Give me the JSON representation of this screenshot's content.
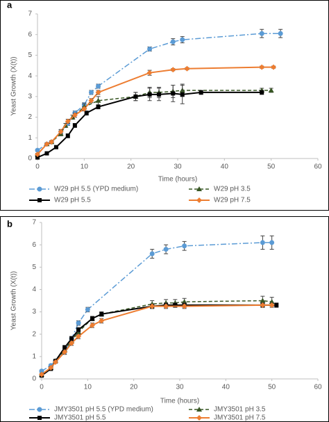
{
  "chart_data": [
    {
      "type": "line",
      "label": "a",
      "x_label": "Time (hours)",
      "y_label": "Yeast Growth (X(t))",
      "xlim": [
        0,
        60
      ],
      "xticks": [
        0,
        10,
        20,
        30,
        40,
        50,
        60
      ],
      "ylim": [
        0,
        7
      ],
      "yticks": [
        0,
        1,
        2,
        3,
        4,
        5,
        6,
        7
      ],
      "series": [
        {
          "name": "W29 pH 5.5 (YPD medium)",
          "color": "#5b9bd5",
          "line_style": "dashdot",
          "marker": "circle",
          "x": [
            0,
            2,
            3,
            5,
            6.5,
            8,
            10,
            11.5,
            13,
            24,
            29,
            31,
            48,
            52
          ],
          "values": [
            0.4,
            0.7,
            0.8,
            1.3,
            1.7,
            2.2,
            2.6,
            3.2,
            3.5,
            5.3,
            5.65,
            5.75,
            6.05,
            6.05
          ],
          "errors": [
            0.05,
            0.05,
            0.05,
            0.1,
            0.1,
            0.1,
            0.1,
            0.1,
            0.1,
            0.1,
            0.15,
            0.15,
            0.2,
            0.2
          ]
        },
        {
          "name": "W29 pH 3.5",
          "color": "#375623",
          "line_style": "dashed",
          "marker": "triangle",
          "x": [
            0,
            2,
            3,
            5,
            6,
            7.5,
            10,
            13,
            21,
            24,
            26,
            29,
            31,
            48,
            50
          ],
          "values": [
            0.2,
            0.7,
            0.8,
            1.2,
            1.6,
            2.0,
            2.5,
            2.8,
            3.0,
            3.2,
            3.2,
            3.25,
            3.3,
            3.3,
            3.3
          ],
          "errors": [
            0.05,
            0.05,
            0.05,
            0.1,
            0.1,
            0.1,
            0.15,
            0.2,
            0.2,
            0.25,
            0.25,
            0.3,
            0.3,
            0.1,
            0.1
          ]
        },
        {
          "name": "W29 pH 5.5",
          "color": "#000000",
          "line_style": "solid",
          "marker": "square",
          "x": [
            0,
            2,
            4,
            6.5,
            8,
            10.5,
            13,
            21,
            24,
            26,
            29,
            31,
            35,
            48
          ],
          "values": [
            0.05,
            0.25,
            0.55,
            1.1,
            1.6,
            2.2,
            2.5,
            3.0,
            3.1,
            3.1,
            3.15,
            3.1,
            3.2,
            3.2
          ],
          "errors": [
            0.05,
            0.05,
            0.05,
            0.1,
            0.1,
            0.1,
            0.1,
            0.2,
            0.3,
            0.3,
            0.4,
            0.45,
            0.1,
            0.1
          ]
        },
        {
          "name": "W29 pH 7.5",
          "color": "#ed7d31",
          "line_style": "solid",
          "marker": "diamond",
          "x": [
            0,
            2,
            3,
            5,
            6.5,
            8,
            10,
            11.5,
            13,
            24,
            29,
            32,
            48,
            50.5
          ],
          "values": [
            0.2,
            0.7,
            0.8,
            1.3,
            1.8,
            2.1,
            2.4,
            2.8,
            3.2,
            4.15,
            4.3,
            4.35,
            4.42,
            4.42
          ],
          "errors": [
            0.05,
            0.05,
            0.05,
            0.1,
            0.1,
            0.1,
            0.1,
            0.1,
            0.1,
            0.12,
            0.05,
            0.05,
            0.05,
            0.05
          ]
        }
      ]
    },
    {
      "type": "line",
      "label": "b",
      "x_label": "Time (hours)",
      "y_label": "Yeast Growth (X(t))",
      "xlim": [
        0,
        60
      ],
      "xticks": [
        0,
        10,
        20,
        30,
        40,
        50,
        60
      ],
      "ylim": [
        0,
        7
      ],
      "yticks": [
        0,
        1,
        2,
        3,
        4,
        5,
        6,
        7
      ],
      "series": [
        {
          "name": "JMY3501 pH 5.5 (YPD medium)",
          "color": "#5b9bd5",
          "line_style": "dashdot",
          "marker": "circle",
          "x": [
            0,
            2,
            3,
            5,
            6.5,
            8,
            10,
            24,
            27,
            31,
            48,
            50
          ],
          "values": [
            0.35,
            0.6,
            0.8,
            1.2,
            1.8,
            2.5,
            3.1,
            5.6,
            5.8,
            5.95,
            6.1,
            6.1
          ],
          "errors": [
            0.05,
            0.05,
            0.05,
            0.1,
            0.1,
            0.1,
            0.1,
            0.2,
            0.2,
            0.2,
            0.3,
            0.3
          ]
        },
        {
          "name": "JMY3501 pH 3.5",
          "color": "#375623",
          "line_style": "dashed",
          "marker": "triangle",
          "x": [
            0,
            2,
            3,
            5,
            6.5,
            8,
            11,
            13,
            24,
            27,
            29,
            31,
            48,
            50
          ],
          "values": [
            0.2,
            0.5,
            0.8,
            1.3,
            1.7,
            2.1,
            2.7,
            2.9,
            3.35,
            3.4,
            3.4,
            3.45,
            3.5,
            3.45
          ],
          "errors": [
            0.05,
            0.05,
            0.05,
            0.1,
            0.1,
            0.1,
            0.1,
            0.1,
            0.15,
            0.15,
            0.15,
            0.15,
            0.2,
            0.2
          ]
        },
        {
          "name": "JMY3501 pH 5.5",
          "color": "#000000",
          "line_style": "solid",
          "marker": "square",
          "x": [
            0,
            2,
            3,
            5,
            6.5,
            8,
            11,
            13,
            24,
            27,
            29,
            31,
            48,
            51
          ],
          "values": [
            0.15,
            0.45,
            0.8,
            1.4,
            1.8,
            2.2,
            2.7,
            2.9,
            3.25,
            3.3,
            3.3,
            3.3,
            3.3,
            3.3
          ],
          "errors": [
            0.05,
            0.05,
            0.05,
            0.1,
            0.1,
            0.1,
            0.1,
            0.1,
            0.1,
            0.1,
            0.1,
            0.1,
            0.1,
            0.1
          ]
        },
        {
          "name": "JMY3501 pH 7.5",
          "color": "#ed7d31",
          "line_style": "solid",
          "marker": "diamond",
          "x": [
            0,
            2,
            3,
            5,
            6.5,
            8,
            11,
            13,
            24,
            27,
            31,
            48,
            50
          ],
          "values": [
            0.2,
            0.5,
            0.75,
            1.2,
            1.6,
            1.9,
            2.4,
            2.6,
            3.25,
            3.25,
            3.25,
            3.3,
            3.3
          ],
          "errors": [
            0.05,
            0.05,
            0.05,
            0.1,
            0.1,
            0.1,
            0.1,
            0.1,
            0.1,
            0.1,
            0.1,
            0.1,
            0.1
          ]
        }
      ]
    }
  ]
}
